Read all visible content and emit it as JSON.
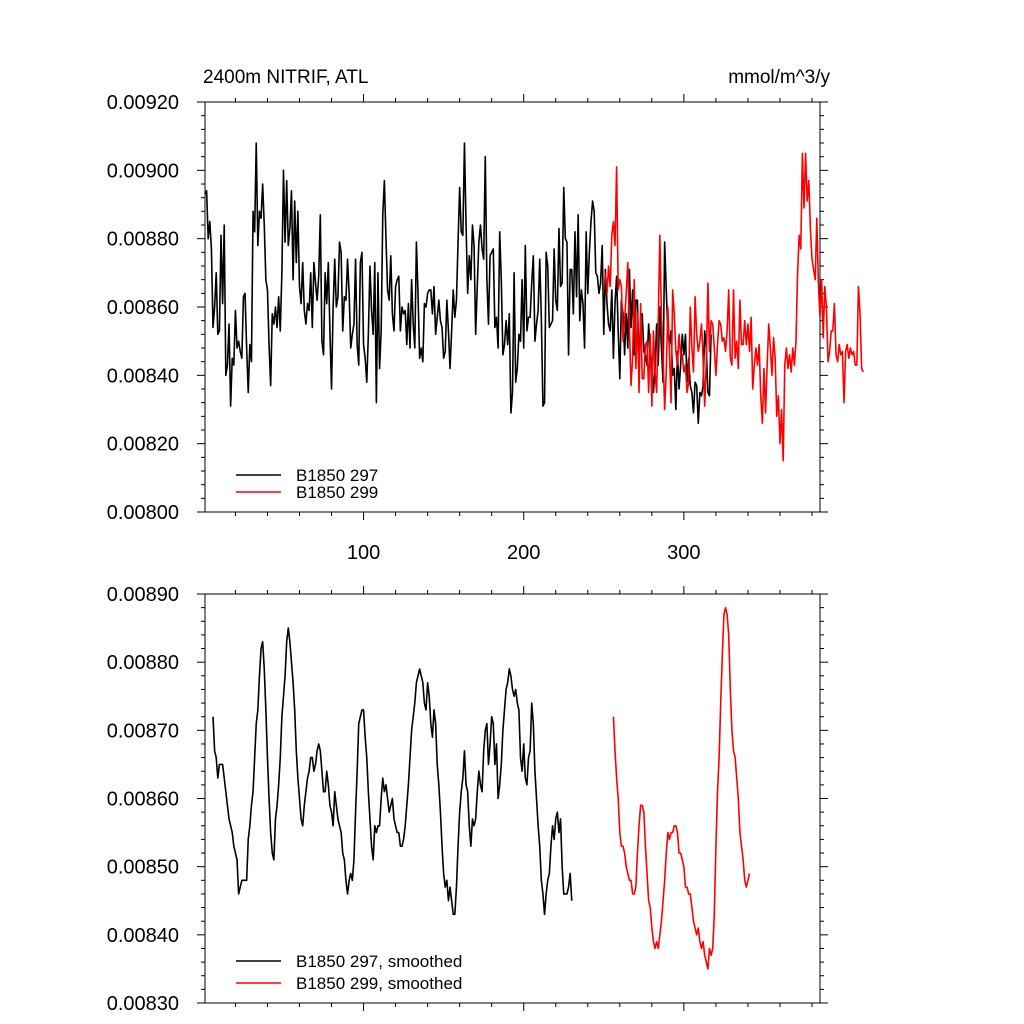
{
  "colors": {
    "run_297": "#000000",
    "run_299": "#ff0000"
  },
  "chart_data": [
    {
      "type": "line",
      "title_left": "2400m NITRIF, ATL",
      "title_right": "mmol/m^3/y",
      "xlim": [
        1,
        385
      ],
      "ylim": [
        0.008,
        0.0092
      ],
      "xticks": [
        100,
        200,
        300
      ],
      "xtick_labels": [
        "100",
        "200",
        "300"
      ],
      "yticks": [
        0.008,
        0.0082,
        0.0084,
        0.0086,
        0.0088,
        0.009,
        0.0092
      ],
      "ytick_labels": [
        "0.00800",
        "0.00820",
        "0.00840",
        "0.00860",
        "0.00880",
        "0.00900",
        "0.00920"
      ],
      "legend": [
        "B1850 297",
        "B1850 299"
      ],
      "legend_position": "bottom-left",
      "series": [
        {
          "name": "B1850 297",
          "color": "#000000",
          "x_start": 1,
          "values": [
            0.00893,
            0.00894,
            0.0088,
            0.00885,
            0.00877,
            0.00854,
            0.0086,
            0.0087,
            0.00852,
            0.00853,
            0.00881,
            0.00861,
            0.00884,
            0.0084,
            0.00843,
            0.00855,
            0.00831,
            0.00845,
            0.00843,
            0.00859,
            0.00848,
            0.0085,
            0.00847,
            0.00845,
            0.00863,
            0.00864,
            0.00848,
            0.00835,
            0.00849,
            0.00844,
            0.00888,
            0.00882,
            0.00908,
            0.00878,
            0.00888,
            0.00886,
            0.00896,
            0.00884,
            0.00868,
            0.00865,
            0.00849,
            0.00837,
            0.00858,
            0.00855,
            0.0086,
            0.00854,
            0.00863,
            0.00853,
            0.0087,
            0.009,
            0.00879,
            0.00897,
            0.00878,
            0.00883,
            0.00894,
            0.00868,
            0.00891,
            0.00873,
            0.00888,
            0.00866,
            0.00861,
            0.00873,
            0.00859,
            0.00855,
            0.00861,
            0.00859,
            0.0087,
            0.00854,
            0.00873,
            0.00867,
            0.00862,
            0.00869,
            0.00887,
            0.0085,
            0.00846,
            0.0087,
            0.00861,
            0.00873,
            0.00853,
            0.00836,
            0.0086,
            0.00874,
            0.0086,
            0.00863,
            0.00879,
            0.00876,
            0.00853,
            0.00863,
            0.00862,
            0.00874,
            0.00864,
            0.00848,
            0.00852,
            0.00855,
            0.00874,
            0.00849,
            0.00843,
            0.00873,
            0.00876,
            0.00849,
            0.00845,
            0.00838,
            0.00852,
            0.00872,
            0.00859,
            0.00852,
            0.00873,
            0.00832,
            0.0087,
            0.00842,
            0.00853,
            0.00887,
            0.00897,
            0.0088,
            0.00865,
            0.00862,
            0.00875,
            0.00858,
            0.00853,
            0.00866,
            0.00868,
            0.00869,
            0.00853,
            0.0086,
            0.00858,
            0.00859,
            0.00849,
            0.00861,
            0.00848,
            0.00868,
            0.00855,
            0.00848,
            0.00879,
            0.00864,
            0.00845,
            0.00848,
            0.00844,
            0.00861,
            0.0086,
            0.00864,
            0.00865,
            0.00865,
            0.00858,
            0.00866,
            0.00852,
            0.00857,
            0.00862,
            0.00856,
            0.00854,
            0.00845,
            0.00847,
            0.00862,
            0.00853,
            0.00842,
            0.00853,
            0.00865,
            0.00857,
            0.00862,
            0.00879,
            0.00895,
            0.00882,
            0.00881,
            0.00908,
            0.00884,
            0.00864,
            0.00875,
            0.00868,
            0.00884,
            0.00878,
            0.00852,
            0.00866,
            0.00879,
            0.00884,
            0.00877,
            0.00874,
            0.00904,
            0.00868,
            0.00855,
            0.00875,
            0.00876,
            0.00877,
            0.00854,
            0.00857,
            0.00848,
            0.00882,
            0.00868,
            0.00846,
            0.00849,
            0.00856,
            0.00849,
            0.00858,
            0.00829,
            0.00835,
            0.0087,
            0.00838,
            0.00842,
            0.00852,
            0.0085,
            0.00868,
            0.00848,
            0.00878,
            0.00853,
            0.00857,
            0.00857,
            0.00867,
            0.00875,
            0.0085,
            0.00855,
            0.00859,
            0.00874,
            0.00857,
            0.00831,
            0.00832,
            0.00876,
            0.00872,
            0.00854,
            0.00855,
            0.00856,
            0.00877,
            0.00862,
            0.00859,
            0.00883,
            0.00866,
            0.00867,
            0.00895,
            0.0088,
            0.00879,
            0.00846,
            0.00871,
            0.00871,
            0.00858,
            0.00882,
            0.00863,
            0.00887,
            0.00856,
            0.00865,
            0.00861,
            0.00848,
            0.00882,
            0.00864,
            0.00876,
            0.00885,
            0.00891,
            0.00888,
            0.0087,
            0.00869,
            0.00864,
            0.00867,
            0.00878,
            0.00852,
            0.00871,
            0.00861,
            0.00855,
            0.00853,
            0.00865,
            0.00845,
            0.00861,
            0.00869,
            0.00853,
            0.00839,
            0.00862,
            0.00858,
            0.00846,
            0.00858,
            0.00848,
            0.00871,
            0.00854,
            0.00865,
            0.00846,
            0.00862,
            0.00862,
            0.00842,
            0.00857,
            0.00858,
            0.00847,
            0.00846,
            0.00843,
            0.00855,
            0.00848,
            0.00843,
            0.00835,
            0.00842,
            0.00855,
            0.00843,
            0.0086,
            0.00848,
            0.00838,
            0.00879,
            0.00865,
            0.00853,
            0.00849,
            0.00853,
            0.0084,
            0.00842,
            0.0083,
            0.00847,
            0.00836,
            0.00843,
            0.00852,
            0.00846,
            0.00852,
            0.00838,
            0.00845,
            0.00837,
            0.00835,
            0.00829,
            0.00838,
            0.00837,
            0.00826,
            0.00835,
            0.00834,
            0.00837,
            0.00853,
            0.00848,
            0.00835,
            0.00834,
            0.00852
          ]
        },
        {
          "name": "B1850 299",
          "color": "#ff0000",
          "x_start": 251,
          "values": [
            0.0087,
            0.00864,
            0.00872,
            0.00866,
            0.00881,
            0.00885,
            0.00878,
            0.00901,
            0.00865,
            0.00868,
            0.00866,
            0.0085,
            0.00856,
            0.00864,
            0.00873,
            0.00854,
            0.00837,
            0.00845,
            0.00868,
            0.00842,
            0.00858,
            0.00835,
            0.00861,
            0.00839,
            0.00839,
            0.00849,
            0.0085,
            0.00835,
            0.00852,
            0.00831,
            0.00853,
            0.00841,
            0.00835,
            0.00856,
            0.00881,
            0.00857,
            0.00846,
            0.0083,
            0.00841,
            0.0086,
            0.00847,
            0.00832,
            0.00865,
            0.00858,
            0.00847,
            0.00843,
            0.00852,
            0.00846,
            0.00846,
            0.00841,
            0.00843,
            0.00835,
            0.00838,
            0.0086,
            0.00848,
            0.00841,
            0.00863,
            0.00852,
            0.00847,
            0.0085,
            0.00855,
            0.00845,
            0.00831,
            0.00844,
            0.00867,
            0.00847,
            0.00856,
            0.00855,
            0.00848,
            0.0084,
            0.00849,
            0.00856,
            0.00855,
            0.0085,
            0.00851,
            0.00847,
            0.00853,
            0.00865,
            0.00845,
            0.00843,
            0.00865,
            0.00845,
            0.0085,
            0.00842,
            0.00862,
            0.00849,
            0.00849,
            0.00856,
            0.00849,
            0.00855,
            0.00847,
            0.00857,
            0.00836,
            0.00843,
            0.00848,
            0.00843,
            0.00849,
            0.00834,
            0.00826,
            0.00842,
            0.00829,
            0.00843,
            0.00855,
            0.00848,
            0.0084,
            0.00851,
            0.00845,
            0.00828,
            0.00834,
            0.0082,
            0.0083,
            0.00815,
            0.00843,
            0.00848,
            0.00842,
            0.00846,
            0.00841,
            0.00848,
            0.00843,
            0.0085,
            0.0087,
            0.00881,
            0.00877,
            0.00905,
            0.00889,
            0.00905,
            0.00891,
            0.00897,
            0.00883,
            0.00874,
            0.00871,
            0.00868,
            0.00886,
            0.00867,
            0.00857,
            0.00868,
            0.00851,
            0.00866,
            0.0086,
            0.00844,
            0.00847,
            0.00853,
            0.00853,
            0.00861,
            0.00846,
            0.00844,
            0.00849,
            0.00846,
            0.00847,
            0.00832,
            0.00847,
            0.00849,
            0.00845,
            0.00848,
            0.00846,
            0.00847,
            0.00843,
            0.00843,
            0.00866,
            0.00858,
            0.00842,
            0.00841
          ]
        }
      ]
    },
    {
      "type": "line",
      "xlim": [
        1,
        385
      ],
      "ylim": [
        0.0083,
        0.0089
      ],
      "xticks": [
        100,
        200,
        300
      ],
      "xtick_labels": [],
      "yticks": [
        0.0083,
        0.0084,
        0.0085,
        0.0086,
        0.0087,
        0.0088,
        0.0089
      ],
      "ytick_labels": [
        "0.00830",
        "0.00840",
        "0.00850",
        "0.00860",
        "0.00870",
        "0.00880",
        "0.00890"
      ],
      "legend": [
        "B1850 297, smoothed",
        "B1850 299, smoothed"
      ],
      "legend_position": "bottom-left",
      "series": [
        {
          "name": "B1850 297, smoothed",
          "color": "#000000",
          "x_start": 6,
          "values": [
            0.00872,
            0.00867,
            0.00866,
            0.00863,
            0.00865,
            0.00865,
            0.00865,
            0.00863,
            0.00861,
            0.00859,
            0.00857,
            0.00856,
            0.00855,
            0.00853,
            0.00852,
            0.00851,
            0.00846,
            0.00847,
            0.00848,
            0.00848,
            0.00848,
            0.00848,
            0.00854,
            0.00856,
            0.00859,
            0.00861,
            0.00866,
            0.00871,
            0.00873,
            0.00878,
            0.00882,
            0.00883,
            0.00879,
            0.00873,
            0.00866,
            0.0086,
            0.00855,
            0.00852,
            0.00851,
            0.00857,
            0.00859,
            0.00862,
            0.00866,
            0.00872,
            0.00875,
            0.00878,
            0.00883,
            0.00885,
            0.00883,
            0.0088,
            0.00877,
            0.00873,
            0.00867,
            0.00863,
            0.0086,
            0.00857,
            0.00856,
            0.00859,
            0.00861,
            0.00863,
            0.00864,
            0.00866,
            0.00866,
            0.00864,
            0.00865,
            0.00867,
            0.00868,
            0.00867,
            0.00864,
            0.00861,
            0.00861,
            0.00864,
            0.00862,
            0.00859,
            0.00858,
            0.00856,
            0.00861,
            0.00859,
            0.00857,
            0.00856,
            0.00855,
            0.00852,
            0.00851,
            0.00848,
            0.00846,
            0.00848,
            0.00849,
            0.00848,
            0.00851,
            0.00858,
            0.00864,
            0.00871,
            0.00872,
            0.00873,
            0.00873,
            0.00869,
            0.00866,
            0.00861,
            0.00857,
            0.00853,
            0.00851,
            0.00856,
            0.00855,
            0.00856,
            0.00856,
            0.0086,
            0.00863,
            0.00861,
            0.00862,
            0.0086,
            0.00858,
            0.00859,
            0.0086,
            0.00857,
            0.00856,
            0.00855,
            0.00855,
            0.00853,
            0.00853,
            0.00854,
            0.00856,
            0.00859,
            0.00862,
            0.00866,
            0.0087,
            0.00872,
            0.00874,
            0.00877,
            0.00878,
            0.00879,
            0.00878,
            0.00877,
            0.00874,
            0.00873,
            0.00877,
            0.00875,
            0.00871,
            0.00869,
            0.00873,
            0.00871,
            0.00865,
            0.00862,
            0.00858,
            0.00853,
            0.00849,
            0.00847,
            0.00848,
            0.00845,
            0.00847,
            0.00845,
            0.00843,
            0.00843,
            0.00847,
            0.00853,
            0.00858,
            0.00861,
            0.00863,
            0.00867,
            0.00862,
            0.00861,
            0.00856,
            0.00853,
            0.00857,
            0.00856,
            0.00857,
            0.00861,
            0.00864,
            0.00862,
            0.00861,
            0.00867,
            0.0087,
            0.00871,
            0.00865,
            0.00868,
            0.00872,
            0.00871,
            0.00865,
            0.00868,
            0.0086,
            0.00862,
            0.00865,
            0.0087,
            0.00873,
            0.00876,
            0.00877,
            0.00879,
            0.00878,
            0.00876,
            0.00875,
            0.00876,
            0.00874,
            0.00873,
            0.00866,
            0.00864,
            0.00868,
            0.00863,
            0.00862,
            0.00866,
            0.00867,
            0.00874,
            0.00871,
            0.00864,
            0.0086,
            0.00856,
            0.00853,
            0.00848,
            0.00846,
            0.00843,
            0.00846,
            0.00848,
            0.00849,
            0.00853,
            0.00856,
            0.00854,
            0.00857,
            0.00858,
            0.00855,
            0.00857,
            0.0085,
            0.00846,
            0.00846,
            0.00846,
            0.00847,
            0.00849,
            0.00845
          ]
        },
        {
          "name": "B1850 299, smoothed",
          "color": "#ff0000",
          "x_start": 256,
          "values": [
            0.00872,
            0.00867,
            0.00863,
            0.0086,
            0.00855,
            0.00853,
            0.00853,
            0.00852,
            0.0085,
            0.00849,
            0.00848,
            0.00848,
            0.00846,
            0.00846,
            0.00847,
            0.00852,
            0.00856,
            0.00859,
            0.00859,
            0.00858,
            0.00853,
            0.00849,
            0.00845,
            0.00844,
            0.00841,
            0.00839,
            0.00838,
            0.00839,
            0.00838,
            0.0084,
            0.00842,
            0.00845,
            0.00848,
            0.00852,
            0.00855,
            0.00854,
            0.00855,
            0.00855,
            0.00856,
            0.00856,
            0.00855,
            0.00852,
            0.00852,
            0.00851,
            0.0085,
            0.00847,
            0.00847,
            0.00846,
            0.00846,
            0.00844,
            0.00842,
            0.00841,
            0.0084,
            0.00841,
            0.00839,
            0.00838,
            0.00839,
            0.00837,
            0.00836,
            0.00835,
            0.00838,
            0.00837,
            0.00838,
            0.00843,
            0.00853,
            0.00861,
            0.00866,
            0.00874,
            0.00881,
            0.00887,
            0.00888,
            0.00887,
            0.00884,
            0.00876,
            0.0087,
            0.00867,
            0.00866,
            0.00863,
            0.0086,
            0.00855,
            0.00853,
            0.00851,
            0.00848,
            0.00847,
            0.00848,
            0.00849
          ]
        }
      ]
    }
  ]
}
